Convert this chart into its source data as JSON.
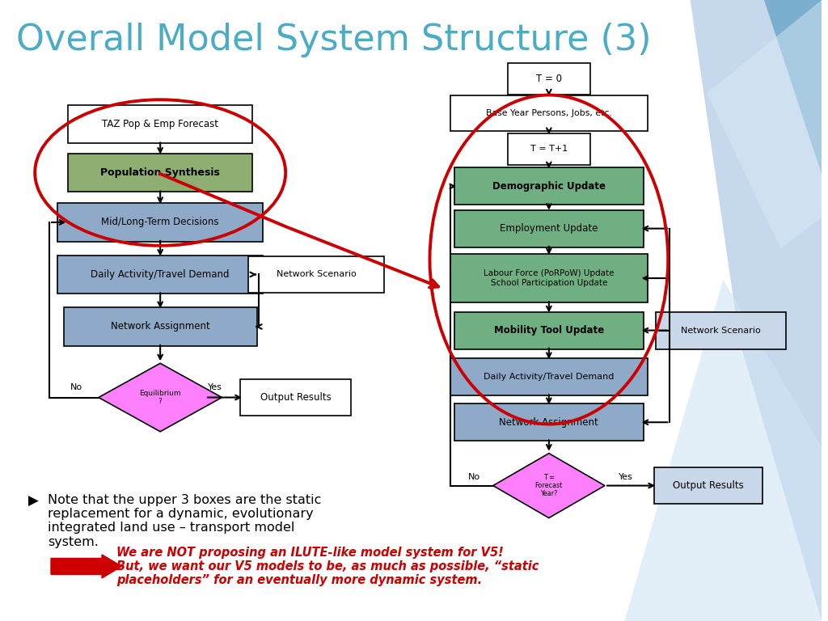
{
  "title": "Overall Model System Structure (3)",
  "title_color": "#4BACC6",
  "title_fontsize": 32,
  "bg_color": "#FFFFFF",
  "left_flow": {
    "taz_label": "TAZ Pop & Emp Forecast",
    "pop_label": "Population Synthesis",
    "mid_label": "Mid/Long-Term Decisions",
    "daily_label": "Daily Activity/Travel Demand",
    "network_label": "Network Assignment",
    "net_scenario_label": "Network Scenario",
    "equilibrium_label": "Equilibrium\n?",
    "output_label": "Output Results",
    "taz_fc": "#FFFFFF",
    "pop_fc": "#8FAF72",
    "mid_fc": "#8FA9C8",
    "daily_fc": "#8FA9C8",
    "network_fc": "#8FA9C8",
    "net_scenario_fc": "#FFFFFF",
    "equilibrium_fc": "#FF80FF",
    "output_fc": "#FFFFFF"
  },
  "right_flow": {
    "t0_label": "T = 0",
    "base_label": "Base Year Persons, Jobs, etc.",
    "t1_label": "T = T+1",
    "demo_label": "Demographic Update",
    "emp_label": "Employment Update",
    "labour_label": "Labour Force (PoRPoW) Update\nSchool Participation Update",
    "mobility_label": "Mobility Tool Update",
    "daily_label": "Daily Activity/Travel Demand",
    "net_assign_label": "Network Assignment",
    "net_scenario_label": "Network Scenario",
    "forecast_label": "T =\nForecast\nYear?",
    "output_label": "Output Results",
    "t0_fc": "#FFFFFF",
    "base_fc": "#FFFFFF",
    "t1_fc": "#FFFFFF",
    "demo_fc": "#6FAF82",
    "emp_fc": "#6FAF82",
    "labour_fc": "#6FAF82",
    "mobility_fc": "#6FAF82",
    "daily_fc": "#8FA9C8",
    "net_assign_fc": "#8FA9C8",
    "net_scenario_fc": "#C8D8E8",
    "forecast_fc": "#FF80FF",
    "output_fc": "#C8D8E8"
  },
  "bottom_text": {
    "bullet_text": "Note that the upper 3 boxes are the static\nreplacement for a dynamic, evolutionary\nintegrated land use – transport model\nsystem.",
    "red_text": "We are NOT proposing an ILUTE-like model system for V5!\nBut, we want our V5 models to be, as much as possible, “static\nplaceholders” for an eventually more dynamic system.",
    "bullet_color": "#000000",
    "red_color": "#CC0000"
  }
}
